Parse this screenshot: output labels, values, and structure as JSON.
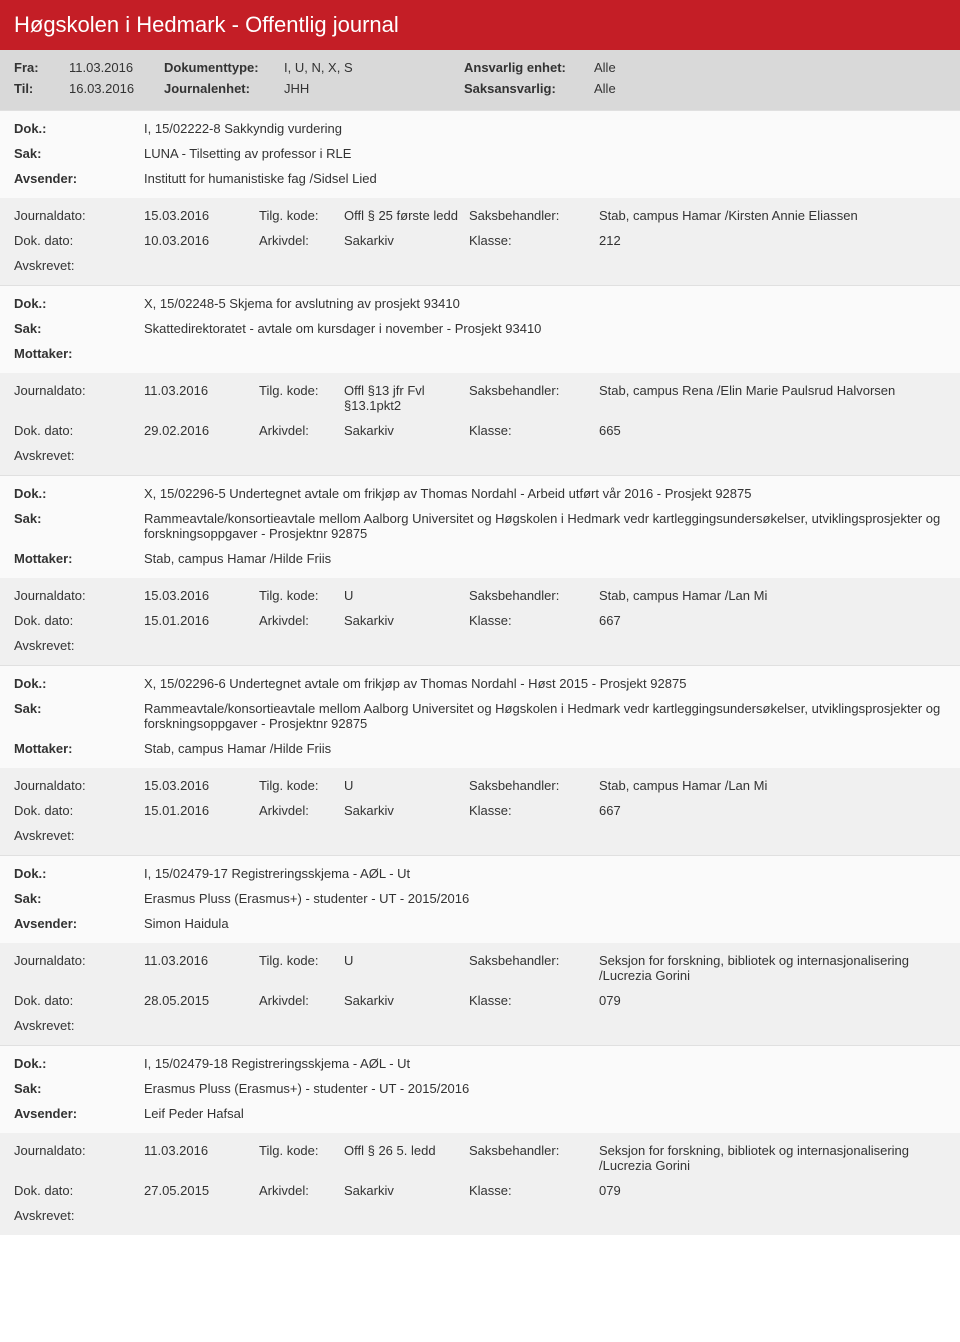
{
  "header": {
    "title": "Høgskolen i Hedmark - Offentlig journal",
    "fra_label": "Fra:",
    "fra_value": "11.03.2016",
    "til_label": "Til:",
    "til_value": "16.03.2016",
    "doktype_label": "Dokumenttype:",
    "doktype_value": "I, U, N, X, S",
    "journalenhet_label": "Journalenhet:",
    "journalenhet_value": "JHH",
    "ansvarlig_label": "Ansvarlig enhet:",
    "ansvarlig_value": "Alle",
    "saksansvarlig_label": "Saksansvarlig:",
    "saksansvarlig_value": "Alle"
  },
  "labels": {
    "dok": "Dok.:",
    "sak": "Sak:",
    "avsender": "Avsender:",
    "mottaker": "Mottaker:",
    "journaldato": "Journaldato:",
    "dokdato": "Dok. dato:",
    "avskrevet": "Avskrevet:",
    "tilgkode": "Tilg. kode:",
    "arkivdel": "Arkivdel:",
    "saksbehandler": "Saksbehandler:",
    "klasse": "Klasse:"
  },
  "entries": [
    {
      "dok": "I, 15/02222-8 Sakkyndig vurdering",
      "sak": "LUNA - Tilsetting av professor i RLE",
      "party_label": "Avsender:",
      "party": "Institutt for humanistiske fag /Sidsel Lied",
      "journaldato": "15.03.2016",
      "tilgkode": "Offl § 25 første ledd",
      "saksbehandler": "Stab, campus Hamar /Kirsten Annie Eliassen",
      "dokdato": "10.03.2016",
      "arkivdel": "Sakarkiv",
      "klasse": "212"
    },
    {
      "dok": "X, 15/02248-5 Skjema for avslutning av prosjekt 93410",
      "sak": "Skattedirektoratet - avtale om kursdager i november - Prosjekt 93410",
      "party_label": "Mottaker:",
      "party": "",
      "journaldato": "11.03.2016",
      "tilgkode": "Offl §13 jfr Fvl §13.1pkt2",
      "saksbehandler": "Stab, campus Rena /Elin Marie Paulsrud Halvorsen",
      "dokdato": "29.02.2016",
      "arkivdel": "Sakarkiv",
      "klasse": "665"
    },
    {
      "dok": "X, 15/02296-5 Undertegnet avtale om frikjøp av Thomas Nordahl - Arbeid utført vår 2016 - Prosjekt 92875",
      "sak": "Rammeavtale/konsortieavtale mellom Aalborg Universitet og Høgskolen i Hedmark vedr kartleggingsundersøkelser, utviklingsprosjekter og forskningsoppgaver - Prosjektnr 92875",
      "party_label": "Mottaker:",
      "party": "Stab, campus Hamar /Hilde Friis",
      "journaldato": "15.03.2016",
      "tilgkode": "U",
      "saksbehandler": "Stab, campus Hamar /Lan Mi",
      "dokdato": "15.01.2016",
      "arkivdel": "Sakarkiv",
      "klasse": "667"
    },
    {
      "dok": "X, 15/02296-6 Undertegnet avtale om frikjøp av Thomas Nordahl - Høst 2015 - Prosjekt 92875",
      "sak": "Rammeavtale/konsortieavtale mellom Aalborg Universitet og Høgskolen i Hedmark vedr kartleggingsundersøkelser, utviklingsprosjekter og forskningsoppgaver - Prosjektnr 92875",
      "party_label": "Mottaker:",
      "party": "Stab, campus Hamar /Hilde Friis",
      "journaldato": "15.03.2016",
      "tilgkode": "U",
      "saksbehandler": "Stab, campus Hamar /Lan Mi",
      "dokdato": "15.01.2016",
      "arkivdel": "Sakarkiv",
      "klasse": "667"
    },
    {
      "dok": "I, 15/02479-17 Registreringsskjema - AØL - Ut",
      "sak": "Erasmus Pluss (Erasmus+) - studenter - UT - 2015/2016",
      "party_label": "Avsender:",
      "party": "Simon Haidula",
      "journaldato": "11.03.2016",
      "tilgkode": "U",
      "saksbehandler": "Seksjon for forskning, bibliotek og internasjonalisering /Lucrezia Gorini",
      "dokdato": "28.05.2015",
      "arkivdel": "Sakarkiv",
      "klasse": "079"
    },
    {
      "dok": "I, 15/02479-18 Registreringsskjema - AØL - Ut",
      "sak": "Erasmus Pluss (Erasmus+) - studenter - UT - 2015/2016",
      "party_label": "Avsender:",
      "party": "Leif Peder Hafsal",
      "journaldato": "11.03.2016",
      "tilgkode": "Offl § 26 5. ledd",
      "saksbehandler": "Seksjon for forskning, bibliotek og internasjonalisering /Lucrezia Gorini",
      "dokdato": "27.05.2015",
      "arkivdel": "Sakarkiv",
      "klasse": "079"
    }
  ]
}
